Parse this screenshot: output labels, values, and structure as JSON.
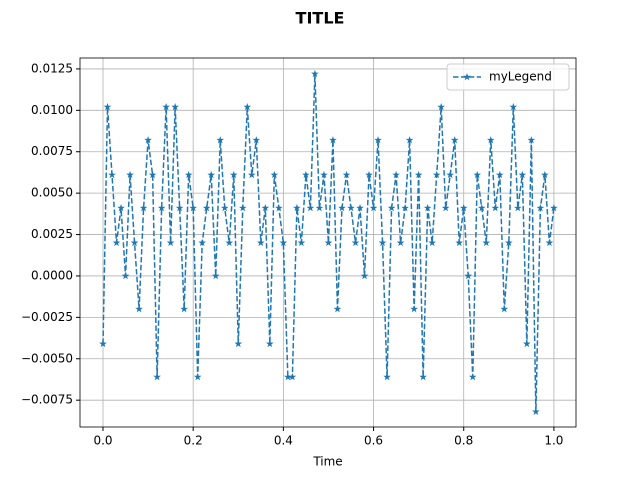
{
  "chart_data": {
    "type": "line",
    "title": "TITLE",
    "x_label": "Time",
    "x": [
      0,
      0.01,
      0.02,
      0.03,
      0.04,
      0.05,
      0.06,
      0.07,
      0.08,
      0.09,
      0.1,
      0.11,
      0.12,
      0.13,
      0.14,
      0.15,
      0.16,
      0.17,
      0.18,
      0.19,
      0.2,
      0.21,
      0.22,
      0.23,
      0.24,
      0.25,
      0.26,
      0.27,
      0.28,
      0.29,
      0.3,
      0.31,
      0.32,
      0.33,
      0.34,
      0.35,
      0.36,
      0.37,
      0.38,
      0.39,
      0.4,
      0.41,
      0.42,
      0.43,
      0.44,
      0.45,
      0.46,
      0.47,
      0.48,
      0.49,
      0.5,
      0.51,
      0.52,
      0.53,
      0.54,
      0.55,
      0.56,
      0.57,
      0.58,
      0.59,
      0.6,
      0.61,
      0.62,
      0.63,
      0.64,
      0.65,
      0.66,
      0.67,
      0.68,
      0.69,
      0.7,
      0.71,
      0.72,
      0.73,
      0.74,
      0.75,
      0.76,
      0.77,
      0.78,
      0.79,
      0.8,
      0.81,
      0.82,
      0.83,
      0.84,
      0.85,
      0.86,
      0.87,
      0.88,
      0.89,
      0.9,
      0.91,
      0.92,
      0.93,
      0.94,
      0.95,
      0.96,
      0.97,
      0.98,
      0.99,
      1.0
    ],
    "series": [
      {
        "name": "myLegend",
        "color": "#1f77b4",
        "values": [
          -0.0041,
          0.0102,
          0.0061,
          0.002,
          0.0041,
          0,
          0.0061,
          0.002,
          -0.002,
          0.0041,
          0.0082,
          0.0061,
          -0.0061,
          0.0041,
          0.0102,
          0.002,
          0.0102,
          0.0041,
          -0.002,
          0.0061,
          0.0041,
          -0.0061,
          0.002,
          0.0041,
          0.0061,
          0,
          0.0082,
          0.0041,
          0.002,
          0.0061,
          -0.0041,
          0.0041,
          0.0102,
          0.0061,
          0.0082,
          0.002,
          0.0041,
          -0.0041,
          0.0061,
          0.0041,
          0.002,
          -0.0061,
          -0.0061,
          0.0041,
          0.002,
          0.0061,
          0.0041,
          0.0122,
          0.0041,
          0.0061,
          0.002,
          0.0082,
          -0.002,
          0.0041,
          0.0061,
          0.0041,
          0.002,
          0.0041,
          0,
          0.0061,
          0.0041,
          0.0082,
          0.002,
          -0.0061,
          0.0041,
          0.0061,
          0.002,
          0.0041,
          0.0082,
          -0.002,
          0.0061,
          -0.0061,
          0.0041,
          0.002,
          0.0061,
          0.0102,
          0.0041,
          0.0061,
          0.0082,
          0.002,
          0.0041,
          0,
          -0.0061,
          0.0061,
          0.0041,
          0.002,
          0.0082,
          0.0041,
          0.0061,
          -0.002,
          0.002,
          0.0102,
          0.0041,
          0.0061,
          -0.0041,
          0.0082,
          -0.0082,
          0.0041,
          0.0061,
          0.002,
          0.0041
        ]
      }
    ],
    "xlim": [
      -0.051,
      1.049
    ],
    "ylim": [
      -0.00912,
      0.01316
    ],
    "xticks": [
      {
        "value": 0,
        "label": "0.0"
      },
      {
        "value": 0.2,
        "label": "0.2"
      },
      {
        "value": 0.4,
        "label": "0.4"
      },
      {
        "value": 0.6,
        "label": "0.6"
      },
      {
        "value": 0.8,
        "label": "0.8"
      },
      {
        "value": 1,
        "label": "1.0"
      }
    ],
    "yticks": [
      {
        "value": -0.0075,
        "label": "−0.0075"
      },
      {
        "value": -0.005,
        "label": "−0.0050"
      },
      {
        "value": -0.0025,
        "label": "−0.0025"
      },
      {
        "value": 0,
        "label": "0.0000"
      },
      {
        "value": 0.0025,
        "label": "0.0025"
      },
      {
        "value": 0.005,
        "label": "0.0050"
      },
      {
        "value": 0.0075,
        "label": "0.0075"
      },
      {
        "value": 0.01,
        "label": "0.0100"
      },
      {
        "value": 0.0125,
        "label": "0.0125"
      }
    ],
    "grid": true,
    "legend": "upper right"
  }
}
